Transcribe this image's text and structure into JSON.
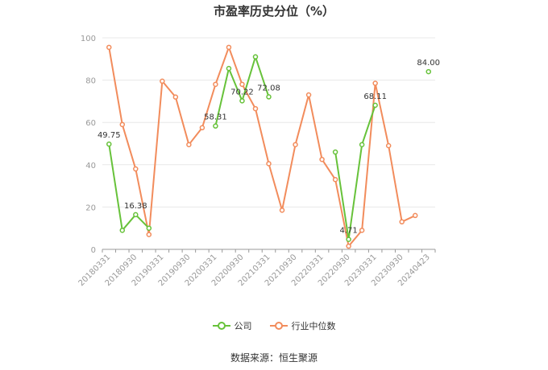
{
  "title": "市盈率历史分位（%）",
  "source": "数据来源：恒生聚源",
  "colors": {
    "company": "#67c23a",
    "industry": "#f28c5c",
    "grid": "#e8e8e8",
    "axis": "#999999"
  },
  "legend": [
    {
      "label": "公司",
      "color": "#67c23a"
    },
    {
      "label": "行业中位数",
      "color": "#f28c5c"
    }
  ],
  "chart_data": {
    "type": "line",
    "title": "市盈率历史分位（%）",
    "categories": [
      "20180331",
      "20180630",
      "20180930",
      "20181231",
      "20190331",
      "20190630",
      "20190930",
      "20191231",
      "20200331",
      "20200630",
      "20200930",
      "20201231",
      "20210331",
      "20210630",
      "20210930",
      "20211231",
      "20220331",
      "20220630",
      "20220930",
      "20221231",
      "20230331",
      "20230630",
      "20230930",
      "20231231",
      "20240423"
    ],
    "x_tick_labels": [
      "20180331",
      "20180930",
      "20190331",
      "20190930",
      "20200331",
      "20200930",
      "20210331",
      "20210930",
      "20220331",
      "20220930",
      "20230331",
      "20230930",
      "20240423"
    ],
    "ylim": [
      0,
      100
    ],
    "yticks": [
      0,
      20,
      40,
      60,
      80,
      100
    ],
    "grid": true,
    "legend_position": "bottom",
    "series": [
      {
        "name": "公司",
        "values": [
          49.75,
          9,
          16.38,
          10,
          null,
          null,
          null,
          null,
          58.31,
          85.5,
          70.22,
          91,
          72.08,
          null,
          null,
          null,
          null,
          46,
          4.71,
          49.5,
          68.11,
          null,
          null,
          null,
          84.0
        ]
      },
      {
        "name": "行业中位数",
        "values": [
          95.5,
          59,
          38,
          7,
          79.5,
          72,
          49.5,
          57.5,
          78,
          95.5,
          78,
          66.5,
          40.5,
          18.5,
          49.5,
          73,
          42.5,
          33,
          1.5,
          9,
          78.5,
          49,
          13,
          16,
          null
        ]
      }
    ],
    "data_labels": [
      {
        "series": "公司",
        "index": 0,
        "text": "49.75"
      },
      {
        "series": "公司",
        "index": 2,
        "text": "16.38"
      },
      {
        "series": "公司",
        "index": 8,
        "text": "58.31"
      },
      {
        "series": "公司",
        "index": 10,
        "text": "70.22"
      },
      {
        "series": "公司",
        "index": 12,
        "text": "72.08"
      },
      {
        "series": "公司",
        "index": 18,
        "text": "4.71"
      },
      {
        "series": "公司",
        "index": 20,
        "text": "68.11"
      },
      {
        "series": "公司",
        "index": 24,
        "text": "84.00"
      }
    ]
  }
}
